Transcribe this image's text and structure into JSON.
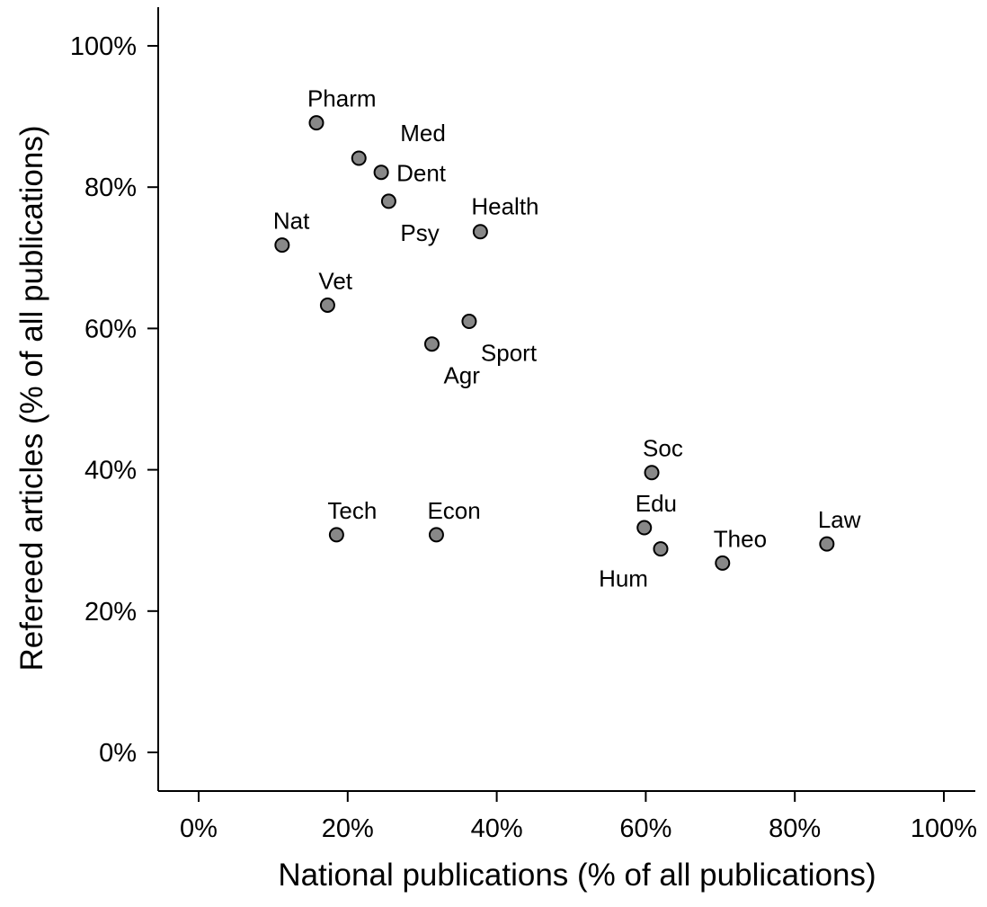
{
  "chart_data": {
    "type": "scatter",
    "title": "",
    "xlabel": "National publications (% of all publications)",
    "ylabel": "Refereed articles (% of all publications)",
    "xlim": [
      0,
      100
    ],
    "ylim": [
      0,
      100
    ],
    "x_ticks": [
      "0%",
      "20%",
      "40%",
      "60%",
      "80%",
      "100%"
    ],
    "y_ticks": [
      "0%",
      "20%",
      "40%",
      "60%",
      "80%",
      "100%"
    ],
    "grid": false,
    "legend": "none",
    "marker_color": "#888888",
    "points": [
      {
        "label": "Pharm",
        "x": 15.8,
        "y": 89.1,
        "label_pos": "above-right"
      },
      {
        "label": "Med",
        "x": 21.5,
        "y": 84.1,
        "label_pos": "above-right-far"
      },
      {
        "label": "Dent",
        "x": 24.5,
        "y": 82.1,
        "label_pos": "right"
      },
      {
        "label": "Psy",
        "x": 25.5,
        "y": 78.0,
        "label_pos": "below-right"
      },
      {
        "label": "Health",
        "x": 37.8,
        "y": 73.7,
        "label_pos": "above"
      },
      {
        "label": "Nat",
        "x": 11.2,
        "y": 71.8,
        "label_pos": "above-right"
      },
      {
        "label": "Vet",
        "x": 17.3,
        "y": 63.3,
        "label_pos": "above-right"
      },
      {
        "label": "Sport",
        "x": 36.3,
        "y": 61.0,
        "label_pos": "below-right"
      },
      {
        "label": "Agr",
        "x": 31.3,
        "y": 57.8,
        "label_pos": "below-right"
      },
      {
        "label": "Soc",
        "x": 60.8,
        "y": 39.6,
        "label_pos": "above-right"
      },
      {
        "label": "Edu",
        "x": 59.8,
        "y": 31.8,
        "label_pos": "above-right"
      },
      {
        "label": "Hum",
        "x": 62.0,
        "y": 28.8,
        "label_pos": "below-left"
      },
      {
        "label": "Tech",
        "x": 18.5,
        "y": 30.8,
        "label_pos": "above-right"
      },
      {
        "label": "Econ",
        "x": 31.9,
        "y": 30.8,
        "label_pos": "above-right"
      },
      {
        "label": "Theo",
        "x": 70.3,
        "y": 26.8,
        "label_pos": "above-right"
      },
      {
        "label": "Law",
        "x": 84.3,
        "y": 29.5,
        "label_pos": "above-right"
      }
    ]
  }
}
